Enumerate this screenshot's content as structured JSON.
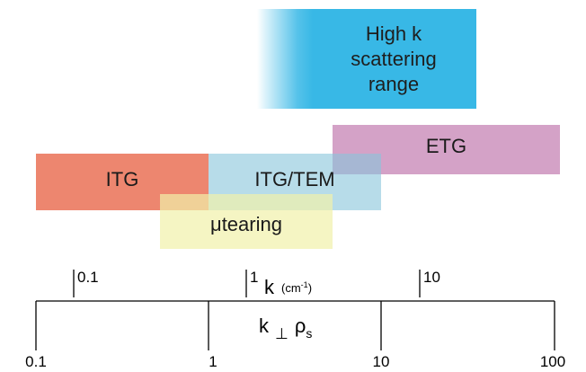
{
  "bands": {
    "high_k": "High k\nscattering\nrange",
    "etg": "ETG",
    "itg": "ITG",
    "itg_tem": "ITG/TEM",
    "mu_tearing": "μtearing"
  },
  "colors": {
    "high_k": "#38b8e6",
    "etg": "#c38cbd",
    "itg": "#e8785c",
    "itg_tem": "#b3dbe8",
    "mu_tearing": "#f6f6c4"
  },
  "axes": {
    "k_ticks": [
      "0.1",
      "1",
      "10"
    ],
    "k_title": "k",
    "k_unit": "(cm",
    "k_unit_exp": "-1",
    "k_unit_close": ")",
    "kperp_ticks": [
      "0.1",
      "1",
      "10",
      "100"
    ],
    "kperp_k": "k",
    "kperp_perp": "⊥",
    "kperp_rho": "ρ",
    "kperp_sub": "s"
  }
}
